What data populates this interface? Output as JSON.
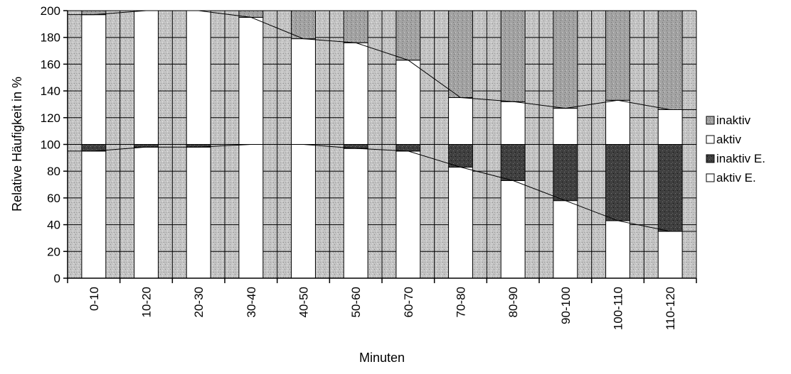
{
  "chart_data": {
    "type": "bar",
    "stacked": true,
    "xlabel": "Minuten",
    "ylabel": "Relative Häufigkeit in %",
    "ylim": [
      0,
      200
    ],
    "yticks": [
      0,
      20,
      40,
      60,
      80,
      100,
      120,
      140,
      160,
      180,
      200
    ],
    "categories": [
      "0-10",
      "10-20",
      "20-30",
      "30-40",
      "40-50",
      "50-60",
      "60-70",
      "70-80",
      "80-90",
      "90-100",
      "100-110",
      "110-120"
    ],
    "grid": true,
    "legend_position": "right",
    "series": [
      {
        "name": "aktiv E.",
        "values": [
          95,
          98,
          98,
          100,
          100,
          97,
          95,
          83,
          73,
          58,
          43,
          35
        ],
        "color": "#ffffff"
      },
      {
        "name": "inaktiv E.",
        "values": [
          5,
          2,
          2,
          0,
          0,
          3,
          5,
          17,
          27,
          42,
          57,
          65
        ],
        "color": "#555555"
      },
      {
        "name": "aktiv",
        "values": [
          97,
          100,
          100,
          95,
          79,
          76,
          63,
          35,
          32,
          27,
          33,
          26
        ],
        "color": "#ffffff"
      },
      {
        "name": "inaktiv",
        "values": [
          3,
          0,
          0,
          5,
          21,
          24,
          37,
          65,
          68,
          73,
          67,
          74
        ],
        "color": "#a3a3a3"
      }
    ],
    "legend_order": [
      "inaktiv",
      "aktiv",
      "inaktiv E.",
      "aktiv E."
    ]
  }
}
